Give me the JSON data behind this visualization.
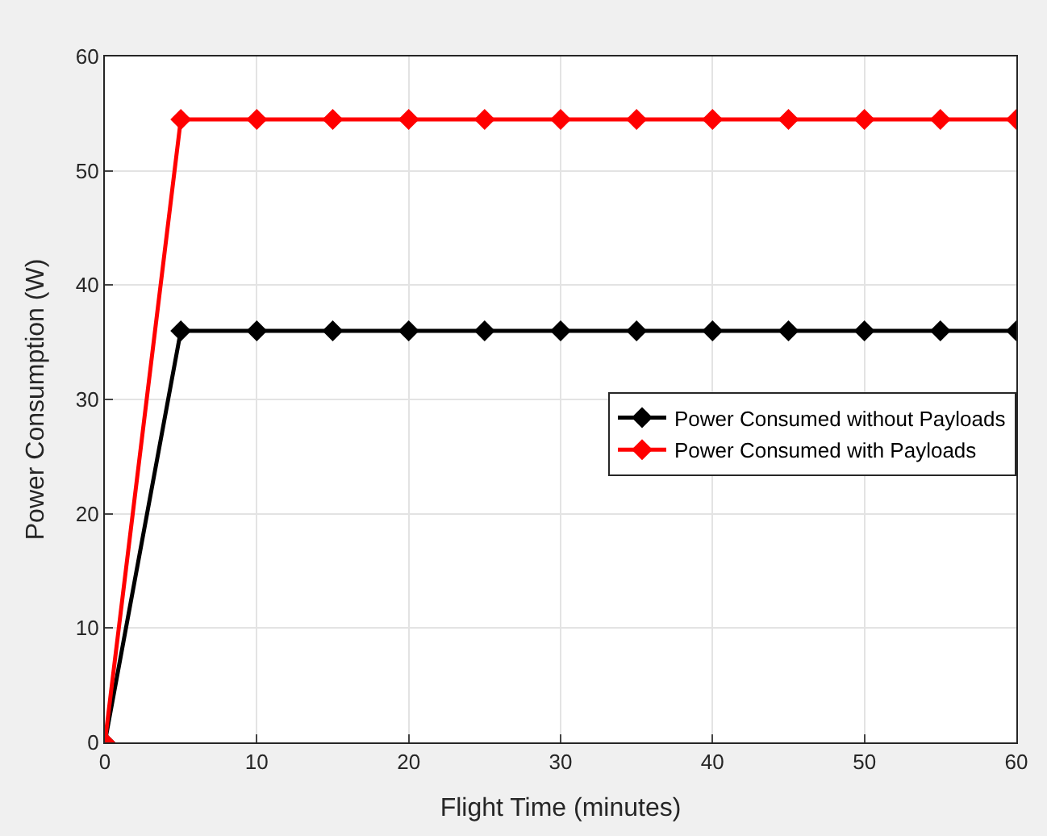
{
  "chart_data": {
    "type": "line",
    "xlabel": "Flight Time (minutes)",
    "ylabel": "Power Consumption (W)",
    "x": [
      0,
      5,
      10,
      15,
      20,
      25,
      30,
      35,
      40,
      45,
      50,
      55,
      60
    ],
    "series": [
      {
        "name": "Power Consumed without Payloads",
        "color": "#000000",
        "values": [
          0,
          36,
          36,
          36,
          36,
          36,
          36,
          36,
          36,
          36,
          36,
          36,
          36
        ]
      },
      {
        "name": "Power Consumed with Payloads",
        "color": "#ff0000",
        "values": [
          0,
          54.5,
          54.5,
          54.5,
          54.5,
          54.5,
          54.5,
          54.5,
          54.5,
          54.5,
          54.5,
          54.5,
          54.5
        ]
      }
    ],
    "xlim": [
      0,
      60
    ],
    "xticks": [
      0,
      10,
      20,
      30,
      40,
      50,
      60
    ],
    "ylim": [
      0,
      60
    ],
    "yticks": [
      0,
      10,
      20,
      30,
      40,
      50,
      60
    ],
    "grid": true,
    "legend": "right",
    "marker": "diamond",
    "line_style": "solid"
  }
}
